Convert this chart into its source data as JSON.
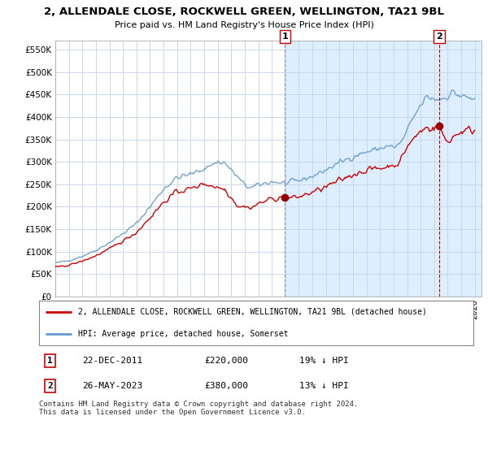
{
  "title": "2, ALLENDALE CLOSE, ROCKWELL GREEN, WELLINGTON, TA21 9BL",
  "subtitle": "Price paid vs. HM Land Registry's House Price Index (HPI)",
  "ylim": [
    0,
    570000
  ],
  "yticks": [
    0,
    50000,
    100000,
    150000,
    200000,
    250000,
    300000,
    350000,
    400000,
    450000,
    500000,
    550000
  ],
  "ytick_labels": [
    "£0",
    "£50K",
    "£100K",
    "£150K",
    "£200K",
    "£250K",
    "£300K",
    "£350K",
    "£400K",
    "£450K",
    "£500K",
    "£550K"
  ],
  "hpi_color": "#6699cc",
  "price_color": "#cc0000",
  "marker1_date": 2011.97,
  "marker1_price": 220000,
  "marker2_date": 2023.38,
  "marker2_price": 380000,
  "legend_line1": "2, ALLENDALE CLOSE, ROCKWELL GREEN, WELLINGTON, TA21 9BL (detached house)",
  "legend_line2": "HPI: Average price, detached house, Somerset",
  "row1_num": "1",
  "row1_date": "22-DEC-2011",
  "row1_price": "£220,000",
  "row1_hpi": "19% ↓ HPI",
  "row2_num": "2",
  "row2_date": "26-MAY-2023",
  "row2_price": "£380,000",
  "row2_hpi": "13% ↓ HPI",
  "footnote": "Contains HM Land Registry data © Crown copyright and database right 2024.\nThis data is licensed under the Open Government Licence v3.0.",
  "grid_color": "#c8d8e8",
  "highlight_bg": "#ddeeff",
  "plot_bg": "#ffffff"
}
